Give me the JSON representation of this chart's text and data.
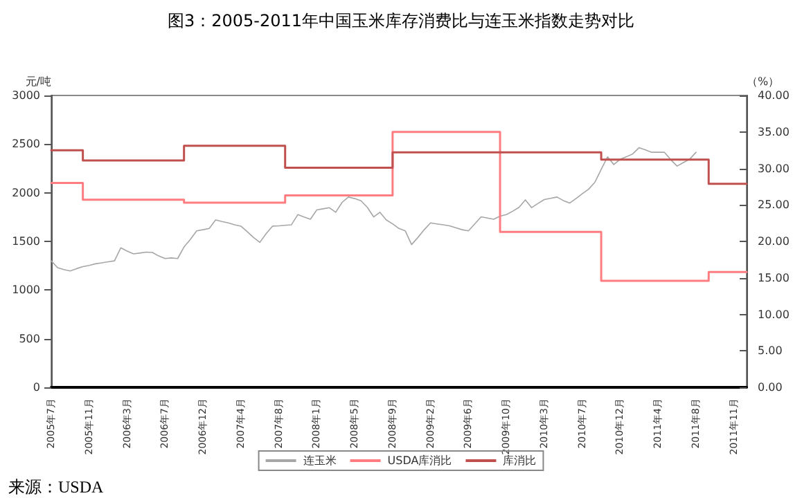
{
  "chart_data": {
    "type": "line",
    "title": "图3：2005-2011年中国玉米库存消费比与连玉米指数走势对比",
    "ylabel": "元/吨",
    "y2label": "（%）",
    "annotations": [
      "来源：USDA"
    ],
    "categories": [
      "2005年7月",
      null,
      null,
      null,
      null,
      null,
      "2005年11月",
      null,
      null,
      null,
      null,
      null,
      "2006年3月",
      null,
      null,
      null,
      null,
      null,
      "2006年7月",
      null,
      null,
      null,
      null,
      null,
      "2006年12月",
      null,
      null,
      null,
      null,
      null,
      "2007年4月",
      null,
      null,
      null,
      null,
      null,
      "2007年8月",
      null,
      null,
      null,
      null,
      null,
      "2008年1月",
      null,
      null,
      null,
      null,
      null,
      "2008年5月",
      null,
      null,
      null,
      null,
      null,
      "2008年9月",
      null,
      null,
      null,
      null,
      null,
      "2009年2月",
      null,
      null,
      null,
      null,
      null,
      "2009年6月",
      null,
      null,
      null,
      null,
      null,
      "2009年10月",
      null,
      null,
      null,
      null,
      null,
      "2010年3月",
      null,
      null,
      null,
      null,
      null,
      "2010年7月",
      null,
      null,
      null,
      null,
      null,
      "2010年12月",
      null,
      null,
      null,
      null,
      null,
      "2011年4月",
      null,
      null,
      null,
      null,
      null,
      "2011年8月",
      null,
      null,
      null,
      null,
      null,
      "2011年11月",
      null,
      null
    ],
    "ylim": [
      0,
      3000
    ],
    "yticks": [
      0,
      500,
      1000,
      1500,
      2000,
      2500,
      3000
    ],
    "y2lim": [
      0,
      40
    ],
    "y2ticks": [
      {
        "value": 0,
        "label": "0.00"
      },
      {
        "value": 5,
        "label": "5.00"
      },
      {
        "value": 10,
        "label": "10.00"
      },
      {
        "value": 15,
        "label": "15.00"
      },
      {
        "value": 20,
        "label": "20.00"
      },
      {
        "value": 25,
        "label": "25.00"
      },
      {
        "value": 30,
        "label": "30.00"
      },
      {
        "value": 35,
        "label": "35.00"
      },
      {
        "value": 40,
        "label": "40.00"
      }
    ],
    "legend": "bottom",
    "grid": false,
    "marker": "none",
    "series": [
      {
        "name": "连玉米",
        "color": "#a6a6a6",
        "values": [
          1300,
          1230,
          1210,
          1196,
          1220,
          1240,
          1253,
          1270,
          1280,
          1290,
          1300,
          1434,
          1400,
          1372,
          1380,
          1390,
          1386,
          1350,
          1324,
          1330,
          1324,
          1443,
          1520,
          1609,
          1620,
          1633,
          1720,
          1704,
          1690,
          1670,
          1657,
          1600,
          1540,
          1490,
          1580,
          1657,
          1660,
          1665,
          1671,
          1775,
          1750,
          1728,
          1823,
          1835,
          1846,
          1799,
          1900,
          1956,
          1940,
          1918,
          1850,
          1752,
          1799,
          1720,
          1680,
          1633,
          1609,
          1467,
          1540,
          1620,
          1690,
          1680,
          1671,
          1660,
          1640,
          1620,
          1609,
          1680,
          1752,
          1740,
          1728,
          1760,
          1775,
          1810,
          1850,
          1927,
          1847,
          1890,
          1930,
          1942,
          1956,
          1920,
          1894,
          1940,
          1990,
          2036,
          2108,
          2240,
          2369,
          2290,
          2345,
          2370,
          2400,
          2464,
          2440,
          2416,
          2416,
          2416,
          2340,
          2274,
          2310,
          2345,
          2416,
          null,
          null,
          null,
          null,
          null,
          null,
          null,
          null
        ]
      },
      {
        "name": "USDA库消比",
        "type": "step",
        "axis": "y2",
        "color": "#ff7c80",
        "values": [
          28.0,
          28.0,
          28.0,
          28.0,
          28.0,
          25.7,
          25.7,
          25.7,
          25.7,
          25.7,
          25.7,
          25.7,
          25.7,
          25.7,
          25.7,
          25.7,
          25.7,
          25.7,
          25.7,
          25.7,
          25.7,
          25.3,
          25.3,
          25.3,
          25.3,
          25.3,
          25.3,
          25.3,
          25.3,
          25.3,
          25.3,
          25.3,
          25.3,
          25.3,
          25.3,
          25.3,
          25.3,
          26.3,
          26.3,
          26.3,
          26.3,
          26.3,
          26.3,
          26.3,
          26.3,
          26.3,
          26.3,
          26.3,
          26.3,
          26.3,
          26.3,
          26.3,
          26.3,
          26.3,
          35.0,
          35.0,
          35.0,
          35.0,
          35.0,
          35.0,
          35.0,
          35.0,
          35.0,
          35.0,
          35.0,
          35.0,
          35.0,
          35.0,
          35.0,
          35.0,
          35.0,
          21.3,
          21.3,
          21.3,
          21.3,
          21.3,
          21.3,
          21.3,
          21.3,
          21.3,
          21.3,
          21.3,
          21.3,
          21.3,
          21.3,
          21.3,
          21.3,
          14.6,
          14.6,
          14.6,
          14.6,
          14.6,
          14.6,
          14.6,
          14.6,
          14.6,
          14.6,
          14.6,
          14.6,
          14.6,
          14.6,
          14.6,
          14.6,
          14.6,
          15.8,
          15.8,
          15.8,
          15.8,
          15.8,
          15.8,
          15.8
        ]
      },
      {
        "name": "库消比",
        "type": "step",
        "axis": "y2",
        "color": "#c0504d",
        "values": [
          32.5,
          32.5,
          32.5,
          32.5,
          32.5,
          31.1,
          31.1,
          31.1,
          31.1,
          31.1,
          31.1,
          31.1,
          31.1,
          31.1,
          31.1,
          31.1,
          31.1,
          31.1,
          31.1,
          31.1,
          31.1,
          33.1,
          33.1,
          33.1,
          33.1,
          33.1,
          33.1,
          33.1,
          33.1,
          33.1,
          33.1,
          33.1,
          33.1,
          33.1,
          33.1,
          33.1,
          33.1,
          30.1,
          30.1,
          30.1,
          30.1,
          30.1,
          30.1,
          30.1,
          30.1,
          30.1,
          30.1,
          30.1,
          30.1,
          30.1,
          30.1,
          30.1,
          30.1,
          30.1,
          32.2,
          32.2,
          32.2,
          32.2,
          32.2,
          32.2,
          32.2,
          32.2,
          32.2,
          32.2,
          32.2,
          32.2,
          32.2,
          32.2,
          32.2,
          32.2,
          32.2,
          32.2,
          32.2,
          32.2,
          32.2,
          32.2,
          32.2,
          32.2,
          32.2,
          32.2,
          32.2,
          32.2,
          32.2,
          32.2,
          32.2,
          32.2,
          32.2,
          31.2,
          31.2,
          31.2,
          31.2,
          31.2,
          31.2,
          31.2,
          31.2,
          31.2,
          31.2,
          31.2,
          31.2,
          31.2,
          31.2,
          31.2,
          31.2,
          31.2,
          27.9,
          27.9,
          27.9,
          27.9,
          27.9,
          27.9,
          27.9
        ]
      }
    ]
  }
}
